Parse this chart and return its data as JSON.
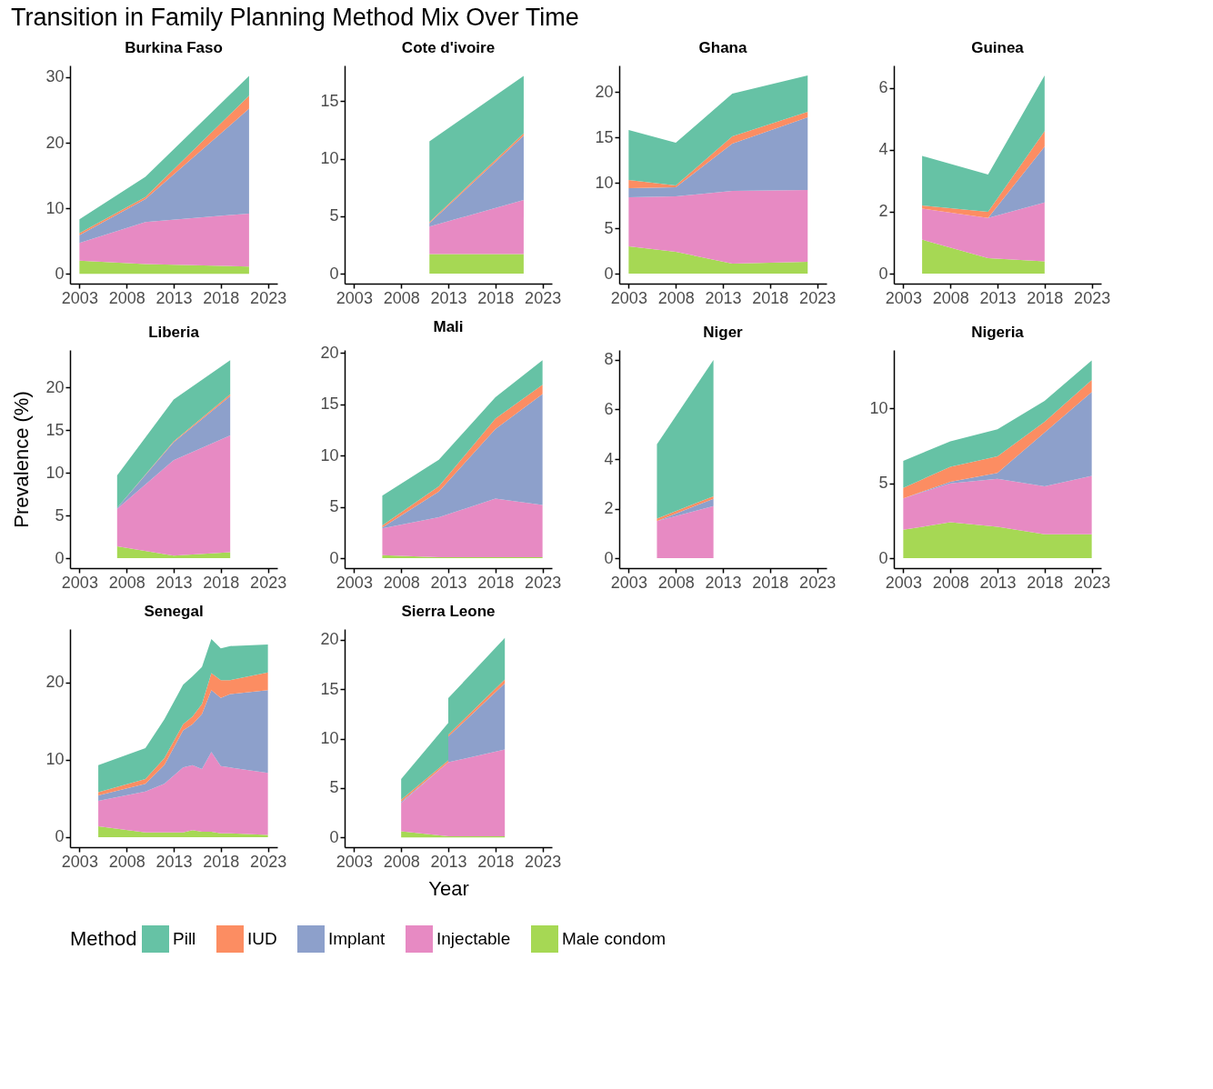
{
  "chart_data": [
    {
      "type": "area",
      "stacked": true,
      "title": "Burkina Faso",
      "annotations": [
        "Transition in Family Planning Method Mix Over Time"
      ],
      "legend": "bottom",
      "legend_title": "Method",
      "x": [
        2003,
        2010,
        2021
      ],
      "xlim": [
        2002,
        2024
      ],
      "xticks": [
        2003,
        2008,
        2013,
        2018,
        2023
      ],
      "ylim": [
        -1.5,
        31.8
      ],
      "yticks": [
        0,
        10,
        20,
        30
      ],
      "series": [
        {
          "name": "Male condom",
          "color": "#a6d854",
          "values": [
            2.0,
            1.5,
            1.1
          ]
        },
        {
          "name": "Injectable",
          "color": "#e78ac3",
          "values": [
            2.7,
            6.4,
            8.1
          ]
        },
        {
          "name": "Implant",
          "color": "#8da0cb",
          "values": [
            1.2,
            3.5,
            16.0
          ]
        },
        {
          "name": "IUD",
          "color": "#fc8d62",
          "values": [
            0.3,
            0.3,
            2.0
          ]
        },
        {
          "name": "Pill",
          "color": "#66c2a5",
          "values": [
            2.1,
            3.1,
            3.0
          ]
        }
      ]
    },
    {
      "type": "area",
      "stacked": true,
      "title": "Cote d'ivoire",
      "legend": "bottom",
      "x": [
        2011,
        2021
      ],
      "xlim": [
        2002,
        2024
      ],
      "xticks": [
        2003,
        2008,
        2013,
        2018,
        2023
      ],
      "ylim": [
        -0.86,
        18.1
      ],
      "yticks": [
        0,
        5,
        10,
        15
      ],
      "series": [
        {
          "name": "Male condom",
          "color": "#a6d854",
          "values": [
            1.7,
            1.7
          ]
        },
        {
          "name": "Injectable",
          "color": "#e78ac3",
          "values": [
            2.4,
            4.7
          ]
        },
        {
          "name": "Implant",
          "color": "#8da0cb",
          "values": [
            0.3,
            5.6
          ]
        },
        {
          "name": "IUD",
          "color": "#fc8d62",
          "values": [
            0.1,
            0.2
          ]
        },
        {
          "name": "Pill",
          "color": "#66c2a5",
          "values": [
            7.0,
            5.0
          ]
        }
      ]
    },
    {
      "type": "area",
      "stacked": true,
      "title": "Ghana",
      "legend": "bottom",
      "x": [
        2003,
        2008,
        2014,
        2022
      ],
      "xlim": [
        2002,
        2024
      ],
      "xticks": [
        2003,
        2008,
        2013,
        2018,
        2023
      ],
      "ylim": [
        -1.1,
        22.9
      ],
      "yticks": [
        0,
        5,
        10,
        15,
        20
      ],
      "series": [
        {
          "name": "Male condom",
          "color": "#a6d854",
          "values": [
            3.0,
            2.4,
            1.1,
            1.3
          ]
        },
        {
          "name": "Injectable",
          "color": "#e78ac3",
          "values": [
            5.4,
            6.1,
            8.0,
            7.9
          ]
        },
        {
          "name": "Implant",
          "color": "#8da0cb",
          "values": [
            1.0,
            1.0,
            5.2,
            8.0
          ]
        },
        {
          "name": "IUD",
          "color": "#fc8d62",
          "values": [
            0.9,
            0.2,
            0.8,
            0.6
          ]
        },
        {
          "name": "Pill",
          "color": "#66c2a5",
          "values": [
            5.5,
            4.7,
            4.7,
            4.0
          ]
        }
      ]
    },
    {
      "type": "area",
      "stacked": true,
      "title": "Guinea",
      "legend": "bottom",
      "x": [
        2005,
        2012,
        2018
      ],
      "xlim": [
        2002,
        2024
      ],
      "xticks": [
        2003,
        2008,
        2013,
        2018,
        2023
      ],
      "ylim": [
        -0.32,
        6.72
      ],
      "yticks": [
        0,
        2,
        4,
        6
      ],
      "series": [
        {
          "name": "Male condom",
          "color": "#a6d854",
          "values": [
            1.1,
            0.5,
            0.4
          ]
        },
        {
          "name": "Injectable",
          "color": "#e78ac3",
          "values": [
            1.0,
            1.3,
            1.9
          ]
        },
        {
          "name": "Implant",
          "color": "#8da0cb",
          "values": [
            0,
            0,
            1.8
          ]
        },
        {
          "name": "IUD",
          "color": "#fc8d62",
          "values": [
            0.1,
            0.2,
            0.5
          ]
        },
        {
          "name": "Pill",
          "color": "#66c2a5",
          "values": [
            1.6,
            1.2,
            1.8
          ]
        }
      ]
    },
    {
      "type": "area",
      "stacked": true,
      "title": "Liberia",
      "ylabel": "Prevalence (%)",
      "legend": "bottom",
      "x": [
        2007,
        2013,
        2019
      ],
      "xlim": [
        2002,
        2024
      ],
      "xticks": [
        2003,
        2008,
        2013,
        2018,
        2023
      ],
      "ylim": [
        -1.16,
        24.4
      ],
      "yticks": [
        0,
        5,
        10,
        15,
        20
      ],
      "series": [
        {
          "name": "Male condom",
          "color": "#a6d854",
          "values": [
            1.4,
            0.3,
            0.7
          ]
        },
        {
          "name": "Injectable",
          "color": "#e78ac3",
          "values": [
            4.4,
            11.2,
            13.7
          ]
        },
        {
          "name": "Implant",
          "color": "#8da0cb",
          "values": [
            0.1,
            2.1,
            4.6
          ]
        },
        {
          "name": "IUD",
          "color": "#fc8d62",
          "values": [
            0,
            0.1,
            0.2
          ]
        },
        {
          "name": "Pill",
          "color": "#66c2a5",
          "values": [
            3.8,
            4.9,
            4.0
          ]
        }
      ]
    },
    {
      "type": "area",
      "stacked": true,
      "title": "Mali",
      "legend": "bottom",
      "x": [
        2006,
        2012,
        2018,
        2023
      ],
      "xlim": [
        2002,
        2024
      ],
      "xticks": [
        2003,
        2008,
        2013,
        2018,
        2023
      ],
      "ylim": [
        -0.97,
        20.3
      ],
      "yticks": [
        0,
        5,
        10,
        15,
        20
      ],
      "series": [
        {
          "name": "Male condom",
          "color": "#a6d854",
          "values": [
            0.3,
            0.1,
            0.1,
            0.1
          ]
        },
        {
          "name": "Injectable",
          "color": "#e78ac3",
          "values": [
            2.6,
            3.9,
            5.7,
            5.1
          ]
        },
        {
          "name": "Implant",
          "color": "#8da0cb",
          "values": [
            0.1,
            2.5,
            6.8,
            10.8
          ]
        },
        {
          "name": "IUD",
          "color": "#fc8d62",
          "values": [
            0.2,
            0.5,
            1.0,
            0.9
          ]
        },
        {
          "name": "Pill",
          "color": "#66c2a5",
          "values": [
            2.9,
            2.6,
            2.1,
            2.4
          ]
        }
      ]
    },
    {
      "type": "area",
      "stacked": true,
      "title": "Niger",
      "legend": "bottom",
      "x": [
        2006,
        2012
      ],
      "xlim": [
        2002,
        2024
      ],
      "xticks": [
        2003,
        2008,
        2013,
        2018,
        2023
      ],
      "ylim": [
        -0.4,
        8.4
      ],
      "yticks": [
        0,
        2,
        4,
        6,
        8
      ],
      "series": [
        {
          "name": "Male condom",
          "color": "#a6d854",
          "values": [
            null,
            null
          ]
        },
        {
          "name": "Injectable",
          "color": "#e78ac3",
          "values": [
            1.5,
            2.1
          ]
        },
        {
          "name": "Implant",
          "color": "#8da0cb",
          "values": [
            0,
            0.3
          ]
        },
        {
          "name": "IUD",
          "color": "#fc8d62",
          "values": [
            0.1,
            0.1
          ]
        },
        {
          "name": "Pill",
          "color": "#66c2a5",
          "values": [
            3.0,
            5.5
          ]
        }
      ]
    },
    {
      "type": "area",
      "stacked": true,
      "title": "Nigeria",
      "legend": "bottom",
      "x": [
        2003,
        2008,
        2013,
        2018,
        2023
      ],
      "xlim": [
        2002,
        2024
      ],
      "xticks": [
        2003,
        2008,
        2013,
        2018,
        2023
      ],
      "ylim": [
        -0.66,
        13.9
      ],
      "yticks": [
        0,
        5,
        10
      ],
      "series": [
        {
          "name": "Male condom",
          "color": "#a6d854",
          "values": [
            1.9,
            2.4,
            2.1,
            1.6,
            1.6
          ]
        },
        {
          "name": "Injectable",
          "color": "#e78ac3",
          "values": [
            2.1,
            2.6,
            3.2,
            3.2,
            3.9
          ]
        },
        {
          "name": "Implant",
          "color": "#8da0cb",
          "values": [
            0,
            0.1,
            0.4,
            3.6,
            5.6
          ]
        },
        {
          "name": "IUD",
          "color": "#fc8d62",
          "values": [
            0.7,
            1.0,
            1.1,
            0.7,
            0.8
          ]
        },
        {
          "name": "Pill",
          "color": "#66c2a5",
          "values": [
            1.8,
            1.7,
            1.8,
            1.4,
            1.3
          ]
        }
      ]
    },
    {
      "type": "area",
      "stacked": true,
      "title": "Senegal",
      "legend": "bottom",
      "x": [
        2005,
        2010,
        2012,
        2014,
        2015,
        2016,
        2017,
        2018,
        2019,
        2023
      ],
      "xlim": [
        2002,
        2024
      ],
      "xticks": [
        2003,
        2008,
        2013,
        2018,
        2023
      ],
      "ylim": [
        -1.3,
        26.9
      ],
      "yticks": [
        0,
        10,
        20
      ],
      "series": [
        {
          "name": "Male condom",
          "color": "#a6d854",
          "values": [
            1.4,
            0.6,
            0.6,
            0.6,
            0.9,
            0.7,
            0.7,
            0.5,
            0.5,
            0.3
          ]
        },
        {
          "name": "Injectable",
          "color": "#e78ac3",
          "values": [
            3.3,
            5.3,
            6.3,
            8.4,
            8.4,
            8.1,
            10.3,
            8.7,
            8.5,
            8.0
          ]
        },
        {
          "name": "Implant",
          "color": "#8da0cb",
          "values": [
            0.7,
            1.0,
            2.4,
            4.8,
            5.3,
            7.1,
            8.0,
            8.8,
            9.5,
            10.7
          ]
        },
        {
          "name": "IUD",
          "color": "#fc8d62",
          "values": [
            0.4,
            0.6,
            0.9,
            0.8,
            1.0,
            1.3,
            2.2,
            2.3,
            1.8,
            2.3
          ]
        },
        {
          "name": "Pill",
          "color": "#66c2a5",
          "values": [
            3.5,
            4.0,
            5.0,
            5.1,
            5.2,
            4.8,
            4.4,
            4.1,
            4.4,
            3.6
          ]
        }
      ]
    },
    {
      "type": "area",
      "stacked": true,
      "title": "Sierra Leone",
      "xlabel": "Year",
      "legend": "bottom",
      "x": [
        2008,
        2013,
        2013,
        2019
      ],
      "xlim": [
        2002,
        2024
      ],
      "xticks": [
        2003,
        2008,
        2013,
        2018,
        2023
      ],
      "ylim": [
        -1.0,
        21.1
      ],
      "yticks": [
        0,
        5,
        10,
        15,
        20
      ],
      "series": [
        {
          "name": "Male condom",
          "color": "#a6d854",
          "values": [
            0.6,
            0.1,
            0.1,
            0.1
          ]
        },
        {
          "name": "Injectable",
          "color": "#e78ac3",
          "values": [
            2.9,
            7.5,
            7.5,
            8.8
          ]
        },
        {
          "name": "Implant",
          "color": "#8da0cb",
          "values": [
            0.1,
            0,
            2.6,
            6.7
          ]
        },
        {
          "name": "IUD",
          "color": "#fc8d62",
          "values": [
            0.2,
            0.2,
            0.2,
            0.4
          ]
        },
        {
          "name": "Pill",
          "color": "#66c2a5",
          "values": [
            2.1,
            3.8,
            3.7,
            4.2
          ]
        }
      ]
    }
  ]
}
